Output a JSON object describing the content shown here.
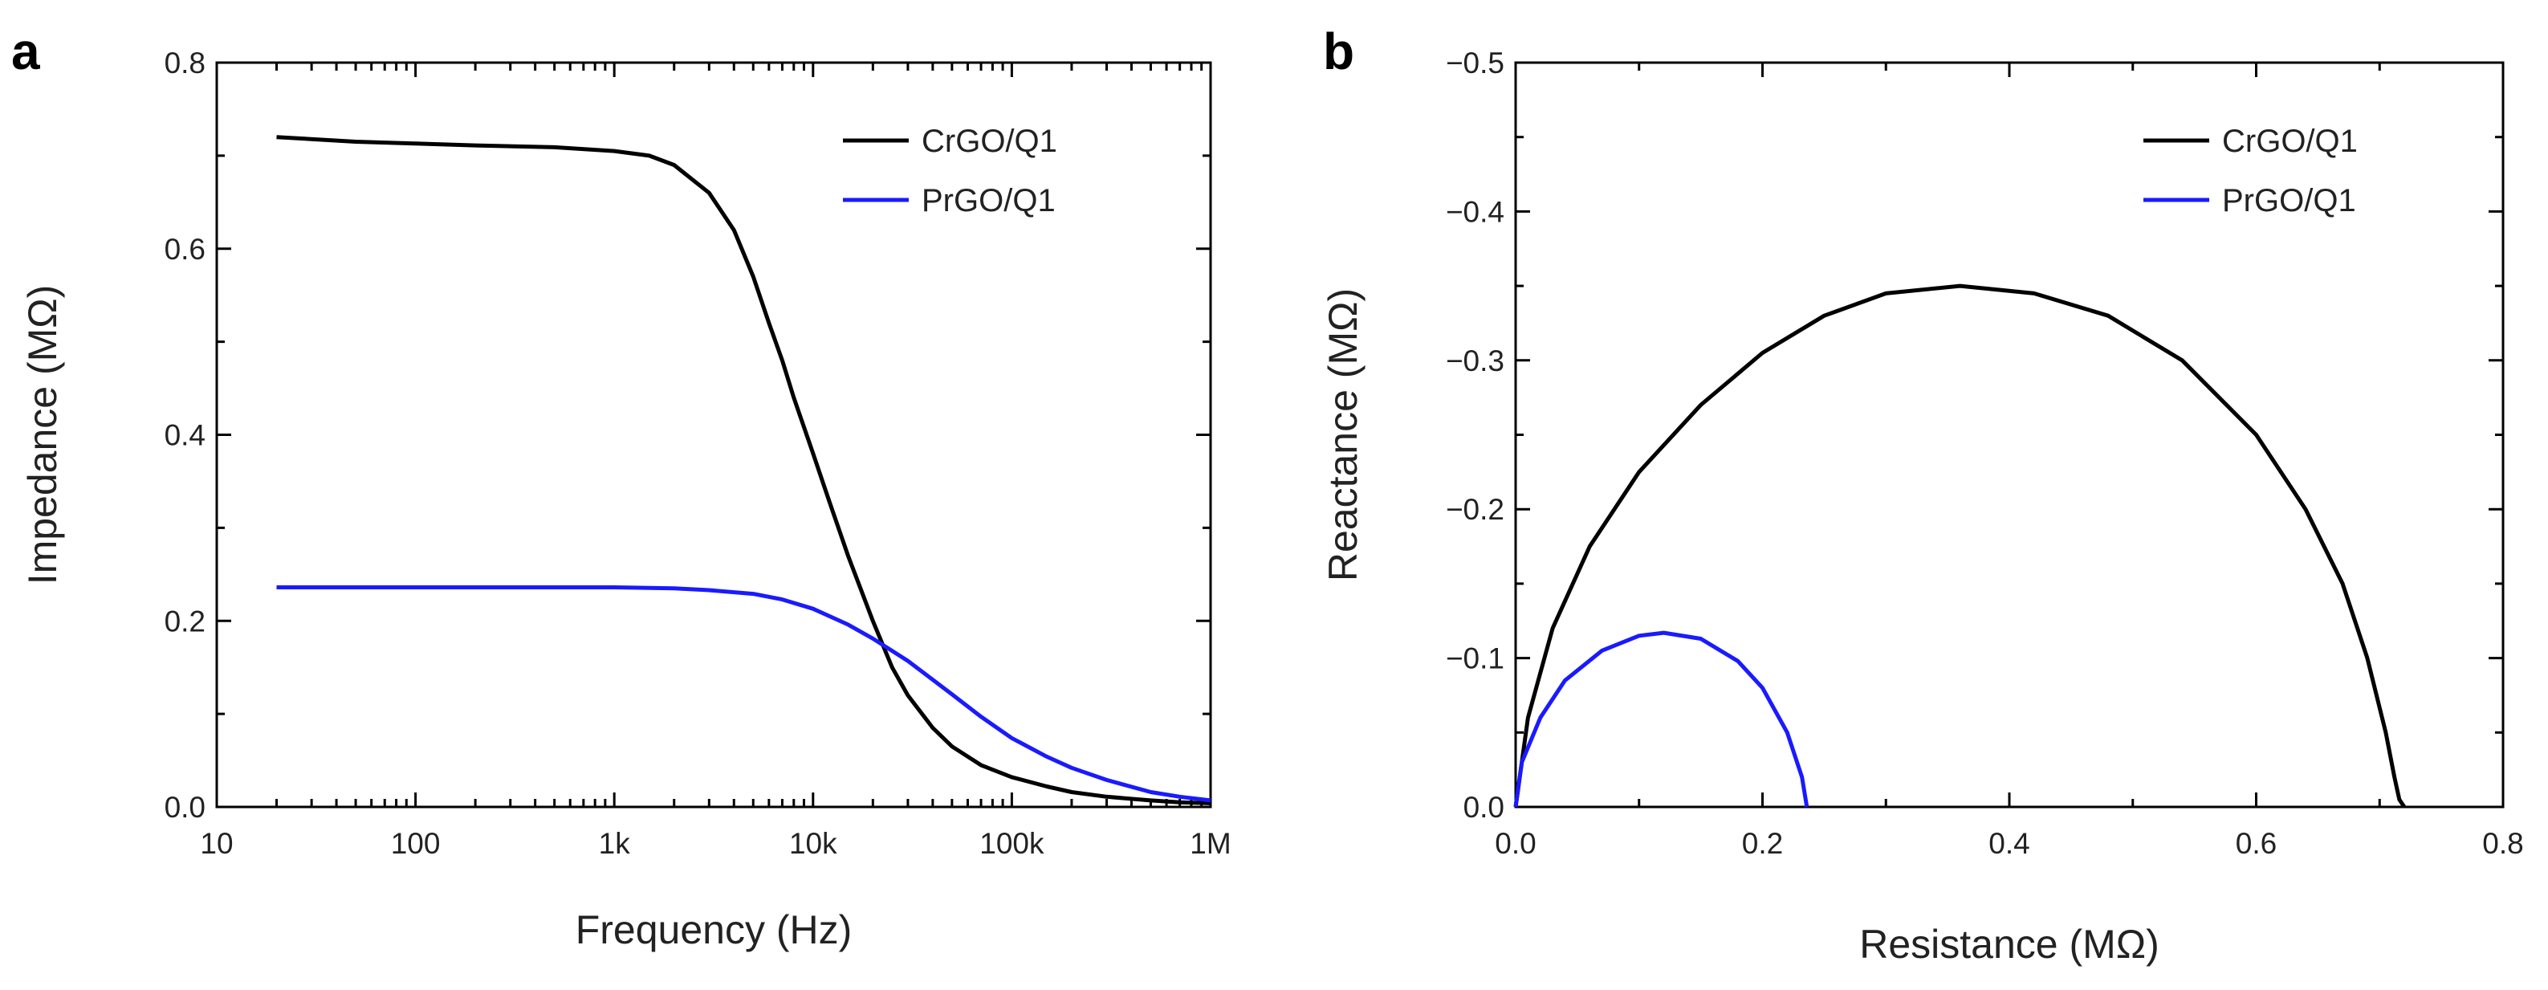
{
  "chart_data": [
    {
      "panel": "a",
      "type": "line",
      "xscale": "log",
      "xlabel": "Frequency (Hz)",
      "ylabel": "Impedance (MΩ)",
      "xlim": [
        10,
        1000000
      ],
      "ylim": [
        0,
        0.8
      ],
      "xticks": [
        10,
        100,
        1000,
        10000,
        100000,
        1000000
      ],
      "xtick_labels": [
        "10",
        "100",
        "1k",
        "10k",
        "100k",
        "1M"
      ],
      "yticks": [
        0,
        0.2,
        0.4,
        0.6,
        0.8
      ],
      "ytick_labels": [
        "0.0",
        "0.2",
        "0.4",
        "0.6",
        "0.8"
      ],
      "legend_position": "top-right",
      "series": [
        {
          "name": "CrGO/Q1",
          "color": "#000000",
          "x": [
            20,
            50,
            100,
            200,
            500,
            1000,
            1500,
            2000,
            3000,
            4000,
            5000,
            6000,
            7000,
            8000,
            10000,
            12000,
            15000,
            20000,
            25000,
            30000,
            40000,
            50000,
            70000,
            100000,
            150000,
            200000,
            300000,
            500000,
            700000,
            1000000
          ],
          "y": [
            0.72,
            0.715,
            0.713,
            0.711,
            0.709,
            0.705,
            0.7,
            0.69,
            0.66,
            0.62,
            0.57,
            0.52,
            0.48,
            0.44,
            0.38,
            0.33,
            0.27,
            0.2,
            0.15,
            0.12,
            0.085,
            0.065,
            0.045,
            0.032,
            0.022,
            0.016,
            0.011,
            0.007,
            0.005,
            0.004
          ]
        },
        {
          "name": "PrGO/Q1",
          "color": "#1a1aff",
          "x": [
            20,
            50,
            100,
            200,
            500,
            1000,
            2000,
            3000,
            5000,
            7000,
            10000,
            15000,
            20000,
            30000,
            50000,
            70000,
            100000,
            150000,
            200000,
            300000,
            500000,
            700000,
            1000000
          ],
          "y": [
            0.236,
            0.236,
            0.236,
            0.236,
            0.236,
            0.236,
            0.235,
            0.233,
            0.229,
            0.223,
            0.213,
            0.196,
            0.181,
            0.157,
            0.121,
            0.097,
            0.074,
            0.054,
            0.042,
            0.029,
            0.016,
            0.011,
            0.007
          ]
        }
      ]
    },
    {
      "panel": "b",
      "type": "line",
      "xlabel": "Resistance (MΩ)",
      "ylabel": "Reactance (MΩ)",
      "xlim": [
        0,
        0.8
      ],
      "ylim": [
        0,
        -0.5
      ],
      "xticks": [
        0,
        0.2,
        0.4,
        0.6,
        0.8
      ],
      "xtick_labels": [
        "0.0",
        "0.2",
        "0.4",
        "0.6",
        "0.8"
      ],
      "yticks": [
        0,
        -0.1,
        -0.2,
        -0.3,
        -0.4,
        -0.5
      ],
      "ytick_labels": [
        "0.0",
        "−0.1",
        "−0.2",
        "−0.3",
        "−0.4",
        "−0.5"
      ],
      "legend_position": "top-right",
      "series": [
        {
          "name": "CrGO/Q1",
          "color": "#000000",
          "x": [
            0.0,
            0.01,
            0.03,
            0.06,
            0.1,
            0.15,
            0.2,
            0.25,
            0.3,
            0.36,
            0.42,
            0.48,
            0.54,
            0.6,
            0.64,
            0.67,
            0.69,
            0.705,
            0.712,
            0.716,
            0.72
          ],
          "y": [
            0.0,
            -0.06,
            -0.12,
            -0.175,
            -0.225,
            -0.27,
            -0.305,
            -0.33,
            -0.345,
            -0.35,
            -0.345,
            -0.33,
            -0.3,
            -0.25,
            -0.2,
            -0.15,
            -0.1,
            -0.05,
            -0.02,
            -0.005,
            0.0
          ]
        },
        {
          "name": "PrGO/Q1",
          "color": "#1a1aff",
          "x": [
            0.0,
            0.005,
            0.02,
            0.04,
            0.07,
            0.1,
            0.12,
            0.15,
            0.18,
            0.2,
            0.22,
            0.232,
            0.236
          ],
          "y": [
            0.0,
            -0.03,
            -0.06,
            -0.085,
            -0.105,
            -0.115,
            -0.117,
            -0.113,
            -0.098,
            -0.08,
            -0.05,
            -0.02,
            0.0
          ]
        }
      ]
    }
  ],
  "panels": {
    "a": {
      "label": "a"
    },
    "b": {
      "label": "b"
    }
  }
}
